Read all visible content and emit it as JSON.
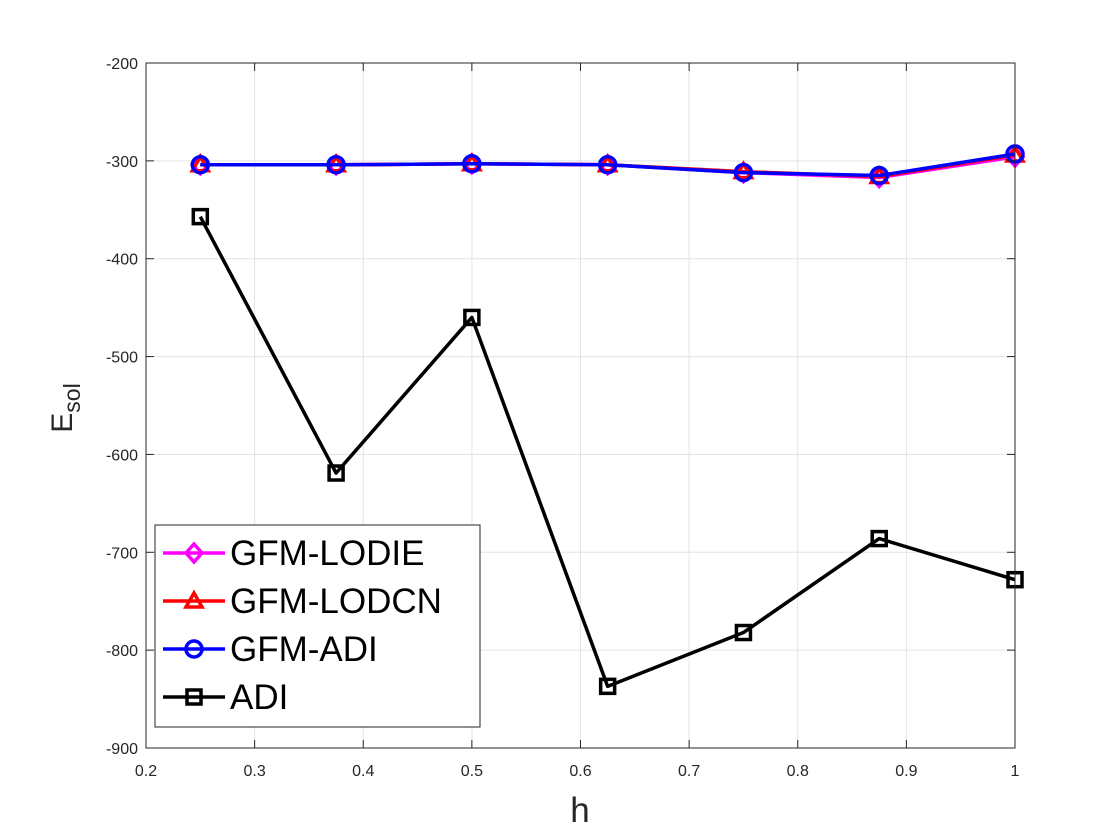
{
  "chart_data": {
    "type": "line",
    "title": "",
    "xlabel": "h",
    "ylabel_main": "E",
    "ylabel_sub": "sol",
    "xlim": [
      0.2,
      1.0
    ],
    "ylim": [
      -900,
      -200
    ],
    "xticks": [
      0.2,
      0.3,
      0.4,
      0.5,
      0.6,
      0.7,
      0.8,
      0.9,
      1.0
    ],
    "xtick_labels": [
      "0.2",
      "0.3",
      "0.4",
      "0.5",
      "0.6",
      "0.7",
      "0.8",
      "0.9",
      "1"
    ],
    "yticks": [
      -200,
      -300,
      -400,
      -500,
      -600,
      -700,
      -800,
      -900
    ],
    "ytick_labels": [
      "-200",
      "-300",
      "-400",
      "-500",
      "-600",
      "-700",
      "-800",
      "-900"
    ],
    "grid": true,
    "legend_position": "bottom-left",
    "x": [
      0.25,
      0.375,
      0.5,
      0.625,
      0.75,
      0.875,
      1.0
    ],
    "series": [
      {
        "name": "GFM-LODIE",
        "color": "#ff00ff",
        "marker": "diamond",
        "values": [
          -304,
          -304,
          -303,
          -304,
          -312,
          -317,
          -296
        ]
      },
      {
        "name": "GFM-LODCN",
        "color": "#ff0000",
        "marker": "triangle",
        "values": [
          -304,
          -304,
          -303,
          -304,
          -311,
          -316,
          -294
        ]
      },
      {
        "name": "GFM-ADI",
        "color": "#0000ff",
        "marker": "circle",
        "values": [
          -304,
          -304,
          -303,
          -304,
          -312,
          -315,
          -293
        ]
      },
      {
        "name": "ADI",
        "color": "#000000",
        "marker": "square",
        "values": [
          -357,
          -619,
          -460,
          -837,
          -782,
          -686,
          -728
        ]
      }
    ]
  }
}
